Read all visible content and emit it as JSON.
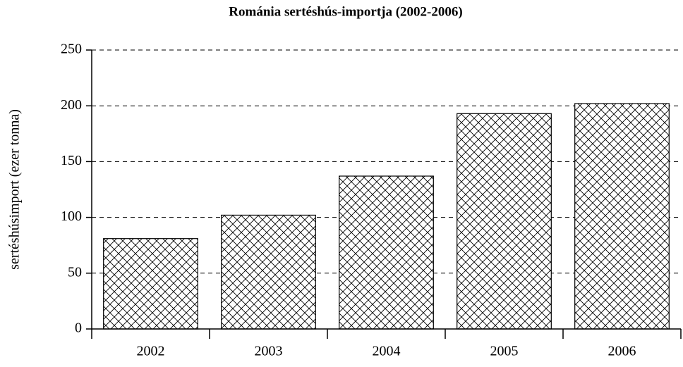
{
  "chart_data": {
    "type": "bar",
    "title": "Románia sertéshús-importja (2002-2006)",
    "ylabel": "sertéshúsimport (ezer tonna)",
    "categories": [
      "2002",
      "2003",
      "2004",
      "2005",
      "2006"
    ],
    "values": [
      81,
      102,
      137,
      193,
      202
    ],
    "color": "#000000",
    "hatch": "crosshatch",
    "ylim": [
      0,
      250
    ],
    "yticks": [
      0,
      50,
      100,
      150,
      200,
      250
    ],
    "grid": true
  }
}
